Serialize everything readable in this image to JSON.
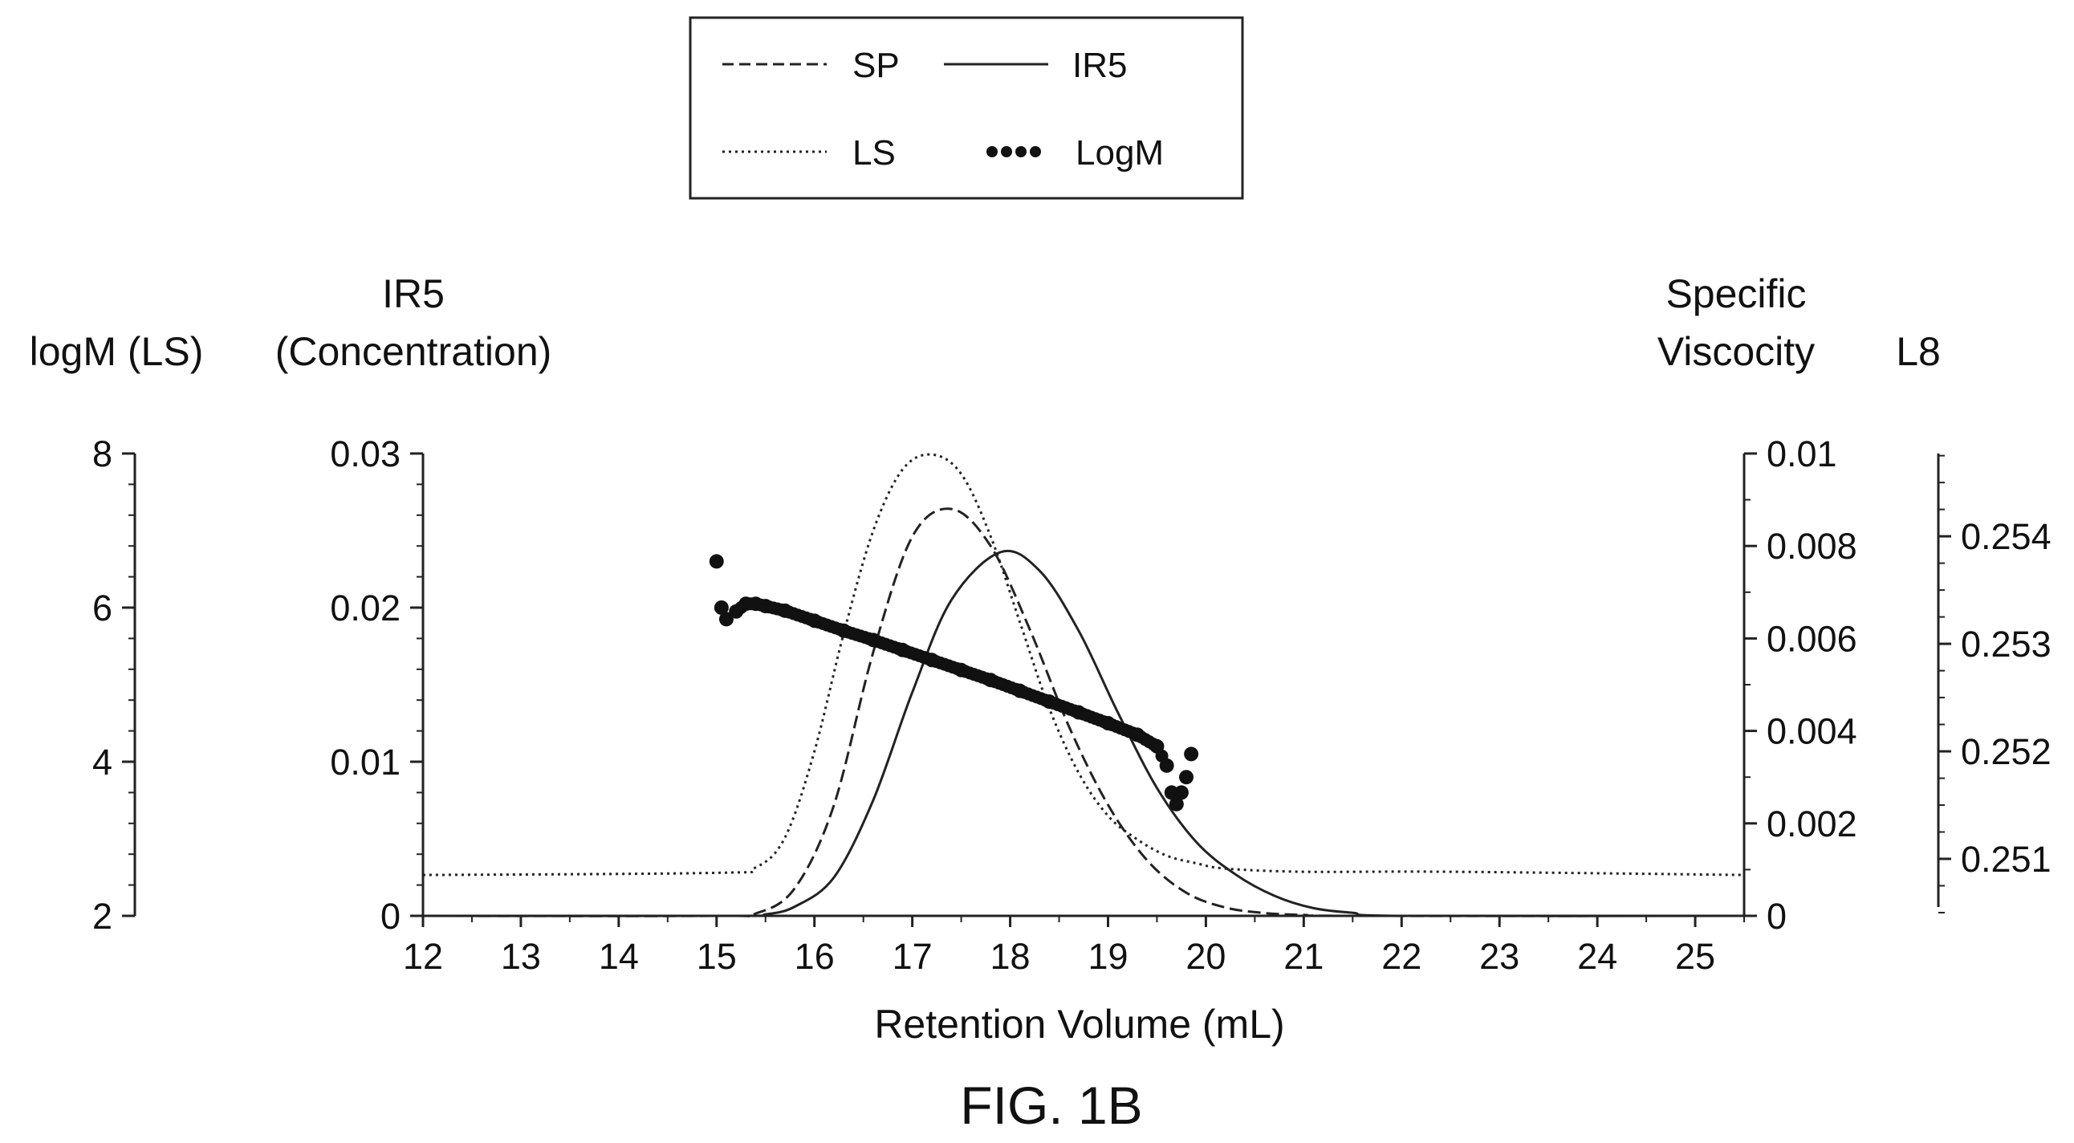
{
  "chart_data": {
    "type": "line",
    "x_axis": {
      "label": "Retention Volume (mL)",
      "range": [
        12,
        25.5
      ],
      "ticks": [
        12,
        13,
        14,
        15,
        16,
        17,
        18,
        19,
        20,
        21,
        22,
        23,
        24,
        25
      ]
    },
    "y_axes": {
      "logm": {
        "title": "logM (LS)",
        "range": [
          2,
          8
        ],
        "ticks": [
          2,
          4,
          6,
          8
        ],
        "position": "outer-left"
      },
      "ir5": {
        "title_line1": "IR5",
        "title_line2": "(Concentration)",
        "range": [
          0,
          0.03
        ],
        "ticks": [
          0,
          0.01,
          0.02,
          0.03
        ],
        "tick_labels": [
          "0",
          "0.01",
          "0.02",
          "0.03"
        ],
        "position": "left"
      },
      "sp": {
        "title_line1": "Specific",
        "title_line2": "Viscocity",
        "range": [
          0,
          0.01
        ],
        "ticks": [
          0,
          0.002,
          0.004,
          0.006,
          0.008,
          0.01
        ],
        "tick_labels": [
          "0",
          "0.002",
          "0.004",
          "0.006",
          "0.008",
          "0.01"
        ],
        "position": "right"
      },
      "ls": {
        "title": "L8",
        "range": [
          0.25047,
          0.25477
        ],
        "ticks": [
          0.251,
          0.252,
          0.253,
          0.254
        ],
        "tick_labels": [
          "0.251",
          "0.252",
          "0.253",
          "0.254"
        ],
        "position": "outer-right"
      }
    },
    "legend": {
      "placement": "top-center",
      "entries": [
        {
          "label": "SP",
          "style": "dashed"
        },
        {
          "label": "IR5",
          "style": "solid"
        },
        {
          "label": "LS",
          "style": "dotted"
        },
        {
          "label": "LogM",
          "style": "dots"
        }
      ]
    },
    "series": [
      {
        "name": "SP",
        "axis": "sp",
        "style": "dashed",
        "x": [
          12,
          15.0,
          15.4,
          15.8,
          16.2,
          16.6,
          17.0,
          17.4,
          17.8,
          18.2,
          18.6,
          19.0,
          19.4,
          19.8,
          20.2,
          20.6,
          21.0,
          21.5,
          25.5
        ],
        "y": [
          0,
          0,
          5e-05,
          0.0006,
          0.0024,
          0.0057,
          0.0082,
          0.0088,
          0.008,
          0.0062,
          0.0041,
          0.0024,
          0.0012,
          0.0005,
          0.00018,
          6e-05,
          2e-05,
          0,
          0
        ]
      },
      {
        "name": "IR5",
        "axis": "ir5",
        "style": "solid",
        "x": [
          12,
          15.2,
          15.5,
          15.8,
          16.2,
          16.6,
          17.0,
          17.4,
          17.9,
          18.3,
          18.7,
          19.1,
          19.5,
          19.9,
          20.3,
          20.7,
          21.1,
          21.5,
          22.0,
          25.5
        ],
        "y": [
          0,
          0,
          0.0001,
          0.0006,
          0.0025,
          0.0075,
          0.0145,
          0.0205,
          0.0236,
          0.0224,
          0.0185,
          0.0132,
          0.0083,
          0.0048,
          0.0027,
          0.0013,
          0.0005,
          0.0002,
          0,
          0
        ]
      },
      {
        "name": "LS",
        "axis": "ls",
        "style": "dotted",
        "x": [
          12,
          15.0,
          15.4,
          15.7,
          16.0,
          16.3,
          16.6,
          16.9,
          17.2,
          17.5,
          17.8,
          18.1,
          18.4,
          18.7,
          19.0,
          19.3,
          19.6,
          19.9,
          20.2,
          21.0,
          22.5,
          25.5
        ],
        "y": [
          0.25085,
          0.25087,
          0.25092,
          0.2512,
          0.252,
          0.2531,
          0.25405,
          0.25462,
          0.25476,
          0.25458,
          0.254,
          0.2532,
          0.2524,
          0.2518,
          0.2514,
          0.25118,
          0.25103,
          0.25096,
          0.25091,
          0.25088,
          0.25088,
          0.25085
        ]
      },
      {
        "name": "LogM",
        "axis": "logm",
        "style": "dots",
        "x": [
          15.0,
          15.05,
          15.1,
          15.2,
          15.3,
          15.4,
          15.5,
          15.7,
          16.0,
          16.3,
          16.6,
          16.9,
          17.2,
          17.5,
          17.8,
          18.1,
          18.4,
          18.7,
          19.0,
          19.3,
          19.5,
          19.6,
          19.65,
          19.7,
          19.75,
          19.8,
          19.85
        ],
        "y": [
          6.6,
          6.0,
          5.85,
          5.95,
          6.05,
          6.05,
          6.02,
          5.96,
          5.83,
          5.7,
          5.58,
          5.45,
          5.32,
          5.19,
          5.06,
          4.92,
          4.78,
          4.64,
          4.5,
          4.35,
          4.2,
          3.95,
          3.6,
          3.45,
          3.6,
          3.8,
          4.1
        ]
      }
    ]
  },
  "figure_caption": "FIG. 1B"
}
